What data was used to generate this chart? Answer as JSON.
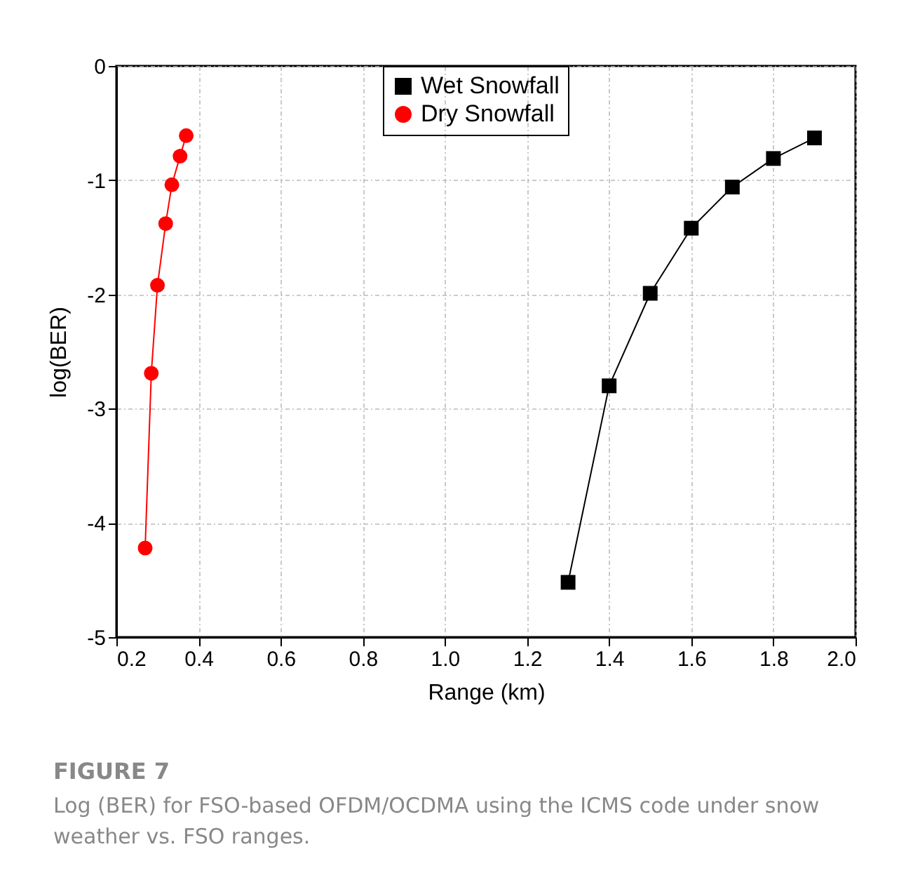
{
  "chart_data": {
    "type": "line",
    "title": "FIGURE 7",
    "annotations": [
      "Log (BER) for FSO-based OFDM/OCDMA using the ICMS code under snow weather vs. FSO ranges."
    ],
    "xlabel": "Range (km)",
    "ylabel": "log(BER)",
    "xlim": [
      0.2,
      2.0
    ],
    "xticks": [
      0.2,
      0.4,
      0.6,
      0.8,
      {
        "value": 1,
        "label": "1.0"
      },
      1.2,
      1.4,
      1.6,
      1.8,
      {
        "value": 2,
        "label": "2.0"
      }
    ],
    "ylim": [
      -5,
      0
    ],
    "yticks": [
      -5,
      -4,
      -3,
      -2,
      -1,
      0
    ],
    "grid": true,
    "legend": "top",
    "line_style": "solid",
    "series": [
      {
        "name": "Wet Snowfall",
        "color": "#000000",
        "marker": "square",
        "x": [
          1.3,
          1.4,
          1.5,
          1.6,
          1.7,
          1.8,
          1.9
        ],
        "values": [
          -4.52,
          -2.8,
          -1.99,
          -1.42,
          -1.06,
          -0.81,
          -0.63
        ]
      },
      {
        "name": "Dry Snowfall",
        "color": "#ff0000",
        "marker": "circle",
        "x": [
          0.27,
          0.285,
          0.3,
          0.32,
          0.335,
          0.355,
          0.37
        ],
        "values": [
          -4.22,
          -2.69,
          -1.92,
          -1.38,
          -1.04,
          -0.79,
          -0.61
        ]
      }
    ]
  }
}
